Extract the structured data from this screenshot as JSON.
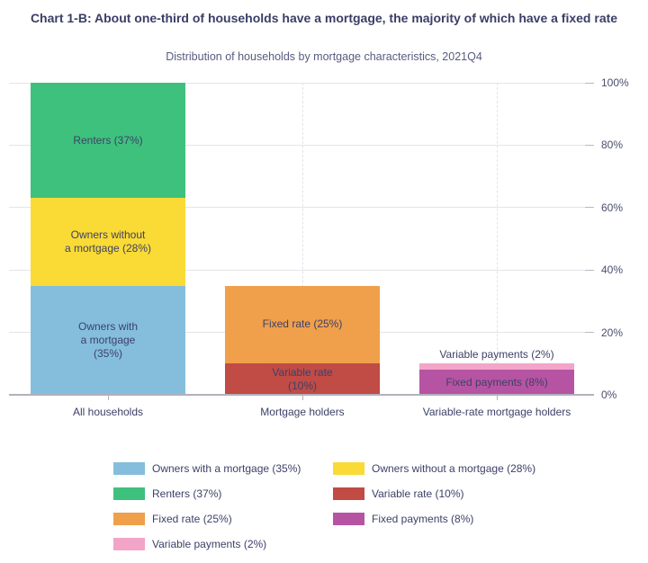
{
  "chart_data": {
    "type": "bar",
    "variant": "stacked-column",
    "title": "Chart 1-B: About one-third of households have a mortgage, the majority of which have a fixed rate",
    "subtitle": "Distribution of households by mortgage characteristics, 2021Q4",
    "unit": "%",
    "categories": [
      "All households",
      "Mortgage holders",
      "Variable-rate mortgage holders"
    ],
    "y_axis": {
      "min": 0,
      "max": 100,
      "tick_step": 20,
      "tick_labels": [
        "0%",
        "20%",
        "40%",
        "60%",
        "80%",
        "100%"
      ],
      "position": "right"
    },
    "grid": true,
    "legend_position": "bottom",
    "bars": [
      {
        "category": "All households",
        "segments": [
          {
            "name": "Owners with a mortgage",
            "value": 35,
            "label": "Owners with\na mortgage\n(35%)",
            "color": "#85bedd"
          },
          {
            "name": "Owners without a mortgage",
            "value": 28,
            "label": "Owners without\na mortgage (28%)",
            "color": "#fada35"
          },
          {
            "name": "Renters",
            "value": 37,
            "label": "Renters (37%)",
            "color": "#3ec17d"
          }
        ]
      },
      {
        "category": "Mortgage holders",
        "segments": [
          {
            "name": "Variable rate",
            "value": 10,
            "label": "Variable rate\n(10%)",
            "color": "#c14b45"
          },
          {
            "name": "Fixed rate",
            "value": 25,
            "label": "Fixed rate (25%)",
            "color": "#f09f4a"
          }
        ]
      },
      {
        "category": "Variable-rate mortgage holders",
        "segments": [
          {
            "name": "Fixed payments",
            "value": 8,
            "label": "Fixed payments (8%)",
            "color": "#b654a3"
          },
          {
            "name": "Variable payments",
            "value": 2,
            "label": "Variable payments (2%)",
            "color": "#f3a5c9",
            "label_outside": true
          }
        ]
      }
    ],
    "legend": [
      {
        "label": "Owners with a mortgage (35%)",
        "color": "#85bedd"
      },
      {
        "label": "Owners without a mortgage (28%)",
        "color": "#fada35"
      },
      {
        "label": "Renters (37%)",
        "color": "#3ec17d"
      },
      {
        "label": "Variable rate (10%)",
        "color": "#c14b45"
      },
      {
        "label": "Fixed rate (25%)",
        "color": "#f09f4a"
      },
      {
        "label": "Fixed payments (8%)",
        "color": "#b654a3"
      },
      {
        "label": "Variable payments (2%)",
        "color": "#f3a5c9"
      }
    ]
  },
  "colors": {
    "title": "#3a3e66",
    "subtitle": "#575c80",
    "label": "#3d4168",
    "y_label": "#4a4e6e",
    "gridline": "#e4e4ea",
    "tick": "#b9b9c3",
    "axis_line": "#b2b2bc",
    "background": "#ffffff"
  }
}
